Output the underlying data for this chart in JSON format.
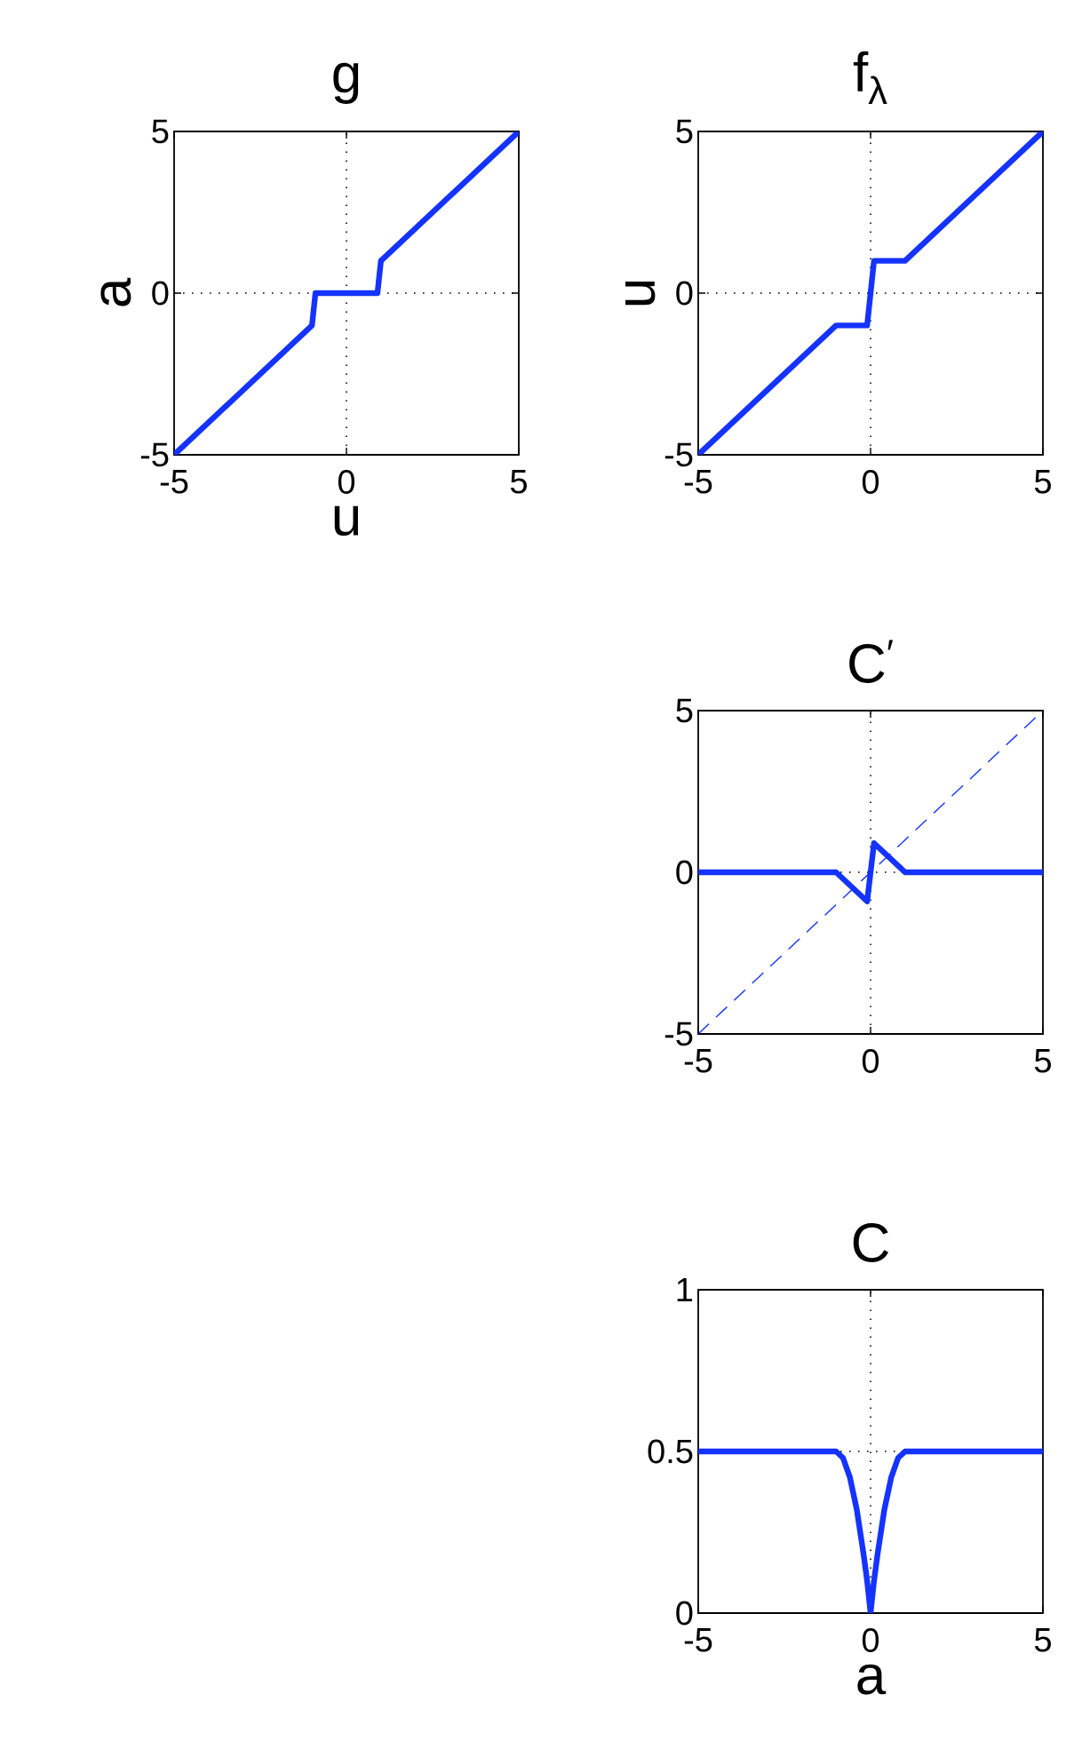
{
  "chart_data": [
    {
      "type": "line",
      "title": "g",
      "xlabel": "u",
      "ylabel": "a",
      "x": [
        -5,
        -1,
        -0.9,
        0.9,
        1,
        5
      ],
      "series": [
        {
          "color": "#1433ff",
          "line_style": "solid",
          "values": [
            -5,
            -1,
            0,
            0,
            1,
            5
          ]
        }
      ],
      "xlim": [
        -5,
        5
      ],
      "ylim": [
        -5,
        5
      ],
      "xticks": [
        -5,
        0,
        5
      ],
      "yticks": [
        -5,
        0,
        5
      ],
      "ref_lines": [
        {
          "axis": "x",
          "value": 0,
          "line_style": "dotted",
          "color": "#000000"
        },
        {
          "axis": "y",
          "value": 0,
          "line_style": "dotted",
          "color": "#000000"
        }
      ]
    },
    {
      "type": "line",
      "title": "f$_{λ}$",
      "ylabel": "u",
      "x": [
        -5,
        -1,
        -0.1,
        0.1,
        1,
        5
      ],
      "series": [
        {
          "color": "#1433ff",
          "line_style": "solid",
          "values": [
            -5,
            -1,
            -1,
            1,
            1,
            5
          ]
        }
      ],
      "xlim": [
        -5,
        5
      ],
      "ylim": [
        -5,
        5
      ],
      "xticks": [
        -5,
        0,
        5
      ],
      "yticks": [
        -5,
        0,
        5
      ],
      "ref_lines": [
        {
          "axis": "x",
          "value": 0,
          "line_style": "dotted",
          "color": "#000000"
        },
        {
          "axis": "y",
          "value": 0,
          "line_style": "dotted",
          "color": "#000000"
        }
      ]
    },
    {
      "type": "line",
      "title": "C$^{′}$",
      "x": [
        -5,
        -1,
        -0.1,
        0.1,
        1,
        5
      ],
      "series": [
        {
          "color": "#1433ff",
          "line_style": "solid",
          "values": [
            0,
            0,
            -0.9,
            0.9,
            0,
            0
          ]
        },
        {
          "color": "#1433ff",
          "line_style": "dashed",
          "x": [
            -5,
            5
          ],
          "values": [
            -5,
            5
          ]
        }
      ],
      "xlim": [
        -5,
        5
      ],
      "ylim": [
        -5,
        5
      ],
      "xticks": [
        -5,
        0,
        5
      ],
      "yticks": [
        -5,
        0,
        5
      ],
      "ref_lines": [
        {
          "axis": "x",
          "value": 0,
          "line_style": "dotted",
          "color": "#000000"
        },
        {
          "axis": "y",
          "value": 0,
          "line_style": "dotted",
          "color": "#000000"
        }
      ]
    },
    {
      "type": "line",
      "title": "C",
      "xlabel": "a",
      "x": [
        -5,
        -1,
        -0.8,
        -0.6,
        -0.4,
        -0.2,
        -0.1,
        0,
        0.1,
        0.2,
        0.4,
        0.6,
        0.8,
        1,
        5
      ],
      "series": [
        {
          "color": "#1433ff",
          "line_style": "solid",
          "values": [
            0.5,
            0.5,
            0.48,
            0.42,
            0.32,
            0.18,
            0.1,
            0,
            0.1,
            0.18,
            0.32,
            0.42,
            0.48,
            0.5,
            0.5
          ]
        }
      ],
      "xlim": [
        -5,
        5
      ],
      "ylim": [
        0,
        1
      ],
      "xticks": [
        -5,
        0,
        5
      ],
      "yticks": [
        0,
        0.5,
        1
      ],
      "ref_lines": [
        {
          "axis": "x",
          "value": 0,
          "line_style": "dotted",
          "color": "#000000"
        },
        {
          "axis": "y",
          "value": 0.5,
          "line_style": "dotted",
          "color": "#000000"
        }
      ]
    }
  ]
}
